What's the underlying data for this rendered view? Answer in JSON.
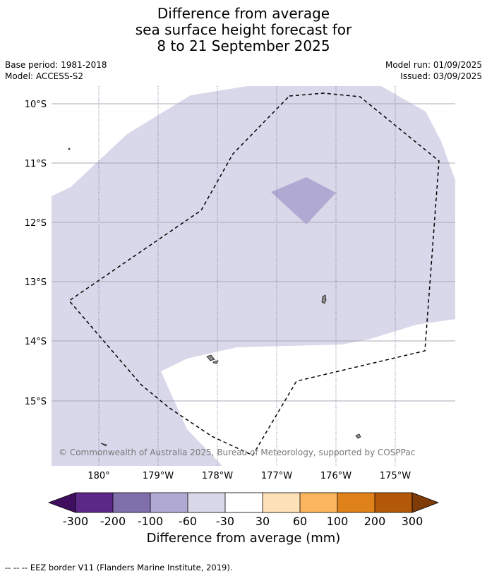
{
  "title": {
    "line1": "Difference from average",
    "line2": "sea surface height forecast for",
    "line3": "8 to 21 September 2025"
  },
  "meta": {
    "base_period": "Base period: 1981-2018",
    "model": "Model: ACCESS-S2",
    "model_run": "Model run: 01/09/2025",
    "issued": "Issued: 03/09/2025"
  },
  "map": {
    "lat_labels": [
      "10°S",
      "11°S",
      "12°S",
      "13°S",
      "14°S",
      "15°S"
    ],
    "lon_labels": [
      "180°",
      "179°W",
      "178°W",
      "177°W",
      "176°W",
      "175°W"
    ],
    "attribution": "© Commonwealth of Australia 2025, Bureau of Meteorology, supported by COSPPac",
    "colors": {
      "light_anomaly": "#d8d8ea",
      "medium_anomaly": "#b0aad2",
      "eez_border": "#000000",
      "land": "#888888"
    }
  },
  "colorbar": {
    "title": "Difference from average (mm)",
    "tick_labels": [
      "-300",
      "-200",
      "-100",
      "-60",
      "-30",
      "30",
      "60",
      "100",
      "200",
      "300"
    ],
    "colors": [
      "#3f0e5f",
      "#5b2888",
      "#7f6faa",
      "#b0aad2",
      "#d8d8ea",
      "#ffffff",
      "#fde0b6",
      "#fbb55d",
      "#e0821a",
      "#b35806",
      "#7f3b08"
    ]
  },
  "footnote": "--  --  -- EEZ border V11 (Flanders Marine Institute, 2019)."
}
